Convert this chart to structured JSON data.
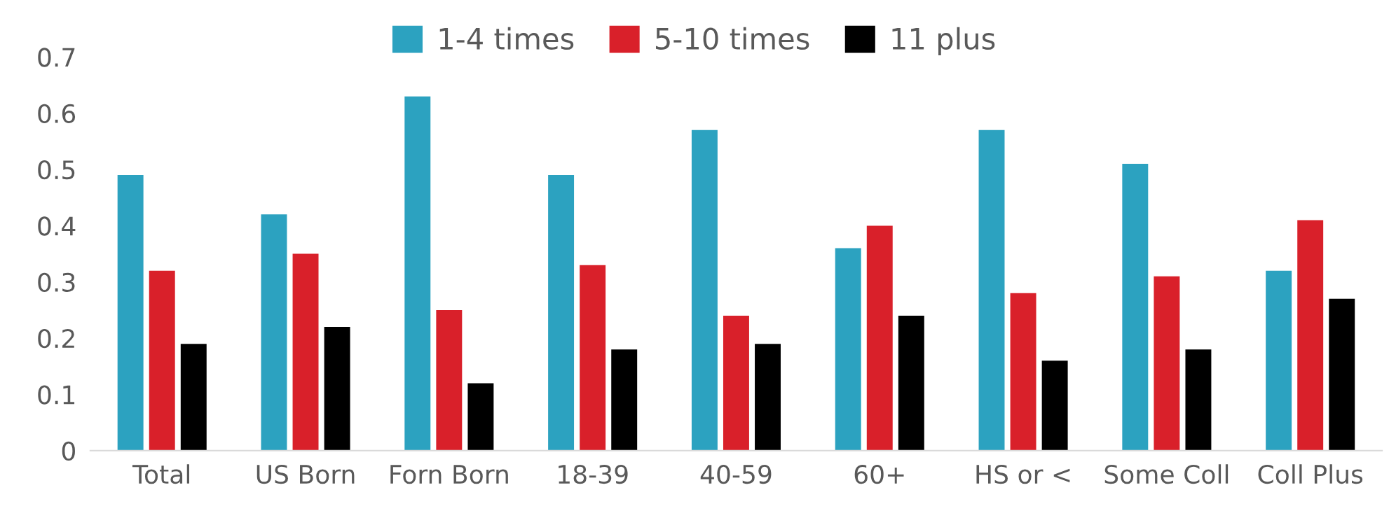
{
  "chart_data": {
    "type": "bar",
    "categories": [
      "Total",
      "US Born",
      "Forn Born",
      "18-39",
      "40-59",
      "60+",
      "HS or <",
      "Some Coll",
      "Coll Plus"
    ],
    "series": [
      {
        "name": "1-4 times",
        "color": "#2ca2c0",
        "values": [
          0.49,
          0.42,
          0.63,
          0.49,
          0.57,
          0.36,
          0.57,
          0.51,
          0.32
        ]
      },
      {
        "name": "5-10 times",
        "color": "#d9202a",
        "values": [
          0.32,
          0.35,
          0.25,
          0.33,
          0.24,
          0.4,
          0.28,
          0.31,
          0.41
        ]
      },
      {
        "name": "11 plus",
        "color": "#000000",
        "values": [
          0.19,
          0.22,
          0.12,
          0.18,
          0.19,
          0.24,
          0.16,
          0.18,
          0.27
        ]
      }
    ],
    "ylim": [
      0,
      0.7
    ],
    "yticks": [
      0,
      0.1,
      0.2,
      0.3,
      0.4,
      0.5,
      0.6,
      0.7
    ],
    "grid": false,
    "legend": "top"
  }
}
